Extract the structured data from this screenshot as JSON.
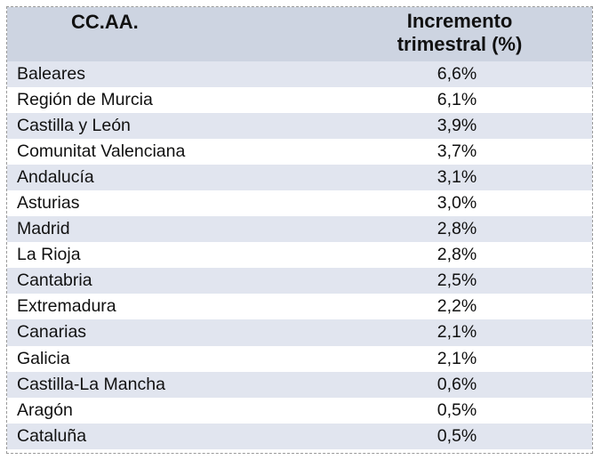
{
  "table": {
    "headers": [
      "CC.AA.",
      "Incremento trimestral (%)"
    ],
    "header_col2_line1": "Incremento",
    "header_col2_line2": "trimestral (%)",
    "rows": [
      {
        "region": "Baleares",
        "value": "6,6%"
      },
      {
        "region": "Región de Murcia",
        "value": "6,1%"
      },
      {
        "region": "Castilla y León",
        "value": "3,9%"
      },
      {
        "region": "Comunitat Valenciana",
        "value": "3,7%"
      },
      {
        "region": "Andalucía",
        "value": "3,1%"
      },
      {
        "region": "Asturias",
        "value": "3,0%"
      },
      {
        "region": "Madrid",
        "value": "2,8%"
      },
      {
        "region": "La Rioja",
        "value": "2,8%"
      },
      {
        "region": "Cantabria",
        "value": "2,5%"
      },
      {
        "region": "Extremadura",
        "value": "2,2%"
      },
      {
        "region": "Canarias",
        "value": "2,1%"
      },
      {
        "region": "Galicia",
        "value": "2,1%"
      },
      {
        "region": "Castilla-La Mancha",
        "value": "0,6%"
      },
      {
        "region": "Aragón",
        "value": "0,5%"
      },
      {
        "region": "Cataluña",
        "value": "0,5%"
      }
    ]
  },
  "colors": {
    "header_bg": "#cdd4e1",
    "row_odd_bg": "#e1e5ef",
    "row_even_bg": "#ffffff",
    "text": "#111111"
  },
  "chart_data": {
    "type": "table",
    "title": "",
    "columns": [
      "CC.AA.",
      "Incremento trimestral (%)"
    ],
    "categories": [
      "Baleares",
      "Región de Murcia",
      "Castilla y León",
      "Comunitat Valenciana",
      "Andalucía",
      "Asturias",
      "Madrid",
      "La Rioja",
      "Cantabria",
      "Extremadura",
      "Canarias",
      "Galicia",
      "Castilla-La Mancha",
      "Aragón",
      "Cataluña"
    ],
    "values": [
      6.6,
      6.1,
      3.9,
      3.7,
      3.1,
      3.0,
      2.8,
      2.8,
      2.5,
      2.2,
      2.1,
      2.1,
      0.6,
      0.5,
      0.5
    ],
    "value_labels": [
      "6,6%",
      "6,1%",
      "3,9%",
      "3,7%",
      "3,1%",
      "3,0%",
      "2,8%",
      "2,8%",
      "2,5%",
      "2,2%",
      "2,1%",
      "2,1%",
      "0,6%",
      "0,5%",
      "0,5%"
    ],
    "unit": "%"
  }
}
